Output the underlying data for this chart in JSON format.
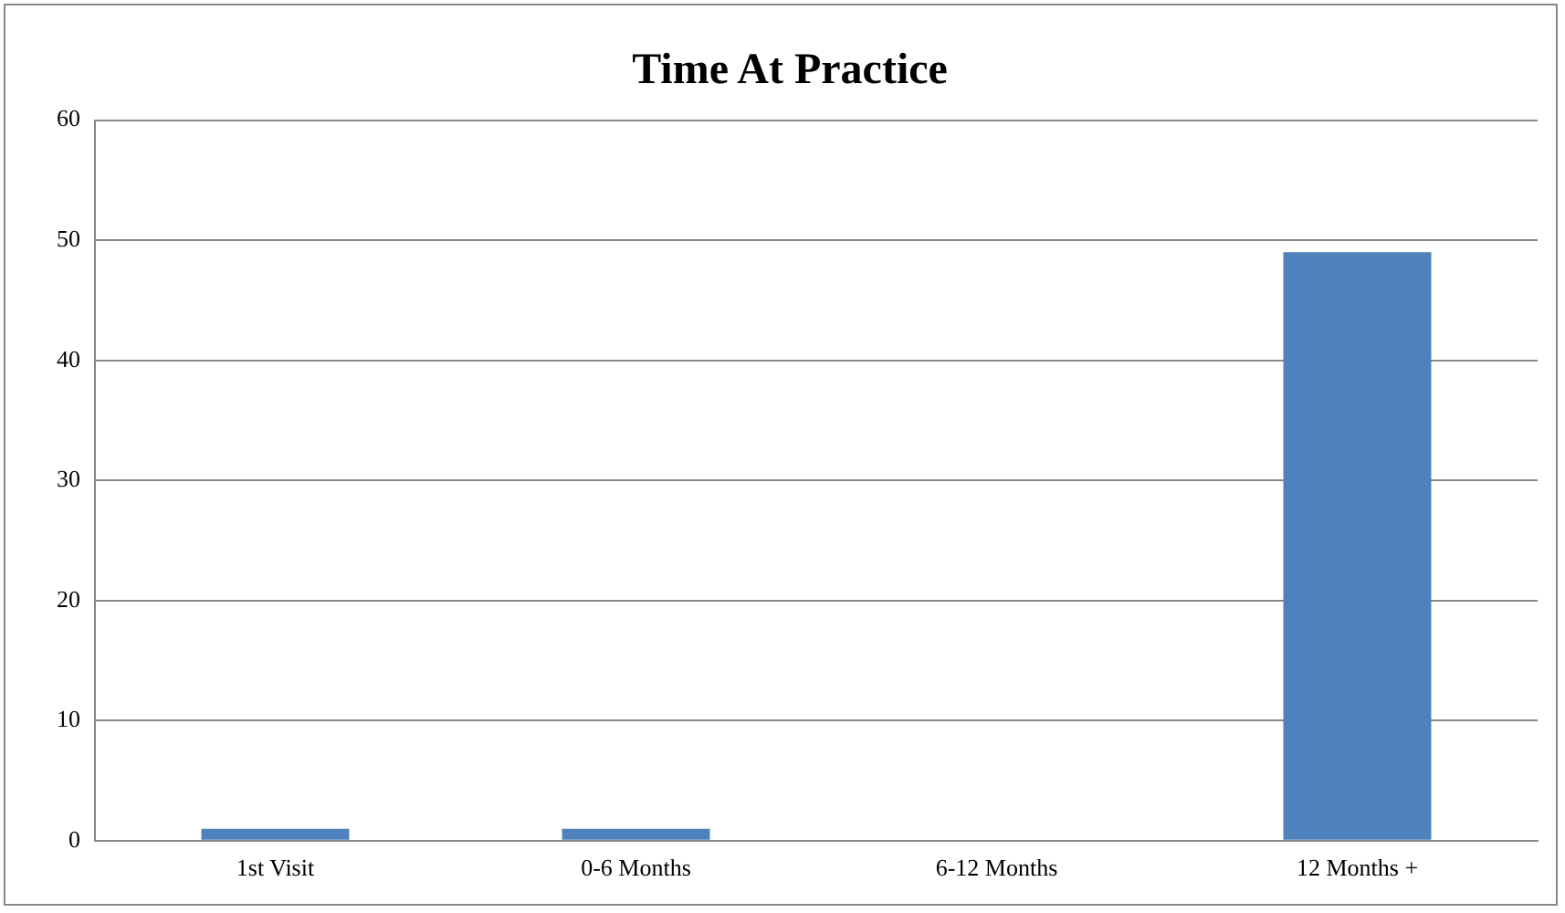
{
  "chart_data": {
    "type": "bar",
    "title": "Time At Practice",
    "categories": [
      "1st Visit",
      "0-6 Months",
      "6-12 Months",
      "12 Months +"
    ],
    "values": [
      1,
      1,
      0,
      49
    ],
    "color": "#4f81bd",
    "ylim": [
      0,
      60
    ],
    "yticks": [
      0,
      10,
      20,
      30,
      40,
      50,
      60
    ],
    "grid": "y",
    "legend": false
  }
}
